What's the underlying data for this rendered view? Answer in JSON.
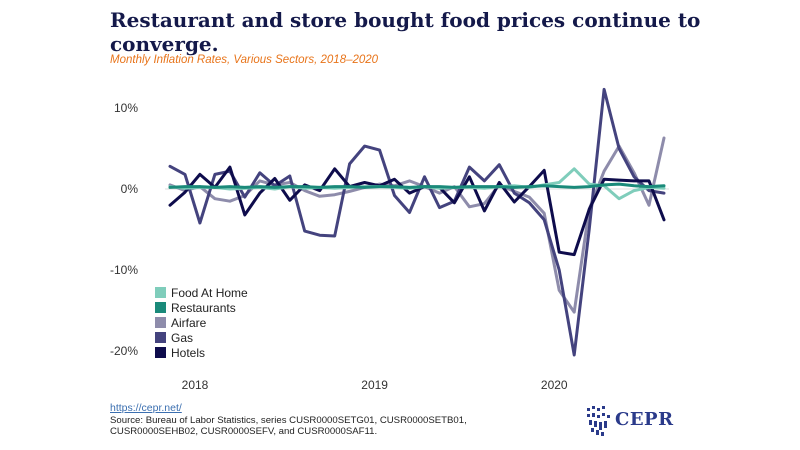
{
  "title": "Restaurant and store bought food prices continue to converge.",
  "subtitle": "Monthly Inflation Rates, Various Sectors, 2018–2020",
  "source_link": "https://cepr.net/",
  "source_text": "Source: Bureau of Labor Statistics, series CUSR0000SETG01, CUSR0000SETB01, CUSR0000SEHB02, CUSR0000SEFV, and CUSR0000SAF11.",
  "logo_text": "CEPR",
  "colors": {
    "Food At Home": "#7fcdbb",
    "Restaurants": "#1a8a7a",
    "Airfare": "#8e8cab",
    "Gas": "#44437e",
    "Hotels": "#0e0c4c"
  },
  "chart_data": {
    "type": "line",
    "title": "Restaurant and store bought food prices continue to converge.",
    "subtitle": "Monthly Inflation Rates, Various Sectors, 2018–2020",
    "xlabel": "",
    "ylabel": "",
    "x": [
      "2018-01",
      "2018-02",
      "2018-03",
      "2018-04",
      "2018-05",
      "2018-06",
      "2018-07",
      "2018-08",
      "2018-09",
      "2018-10",
      "2018-11",
      "2018-12",
      "2019-01",
      "2019-02",
      "2019-03",
      "2019-04",
      "2019-05",
      "2019-06",
      "2019-07",
      "2019-08",
      "2019-09",
      "2019-10",
      "2019-11",
      "2019-12",
      "2020-01",
      "2020-02",
      "2020-03",
      "2020-04",
      "2020-05",
      "2020-06",
      "2020-07",
      "2020-08",
      "2020-09",
      "2020-10"
    ],
    "x_ticks": [
      "2018",
      "2019",
      "2020"
    ],
    "y_ticks": [
      "10%",
      "0%",
      "-10%",
      "-20%"
    ],
    "ylim": [
      -22,
      13
    ],
    "grid": false,
    "legend_position": "bottom-left",
    "series": [
      {
        "name": "Airfare",
        "values": [
          0.5,
          -0.2,
          0.3,
          -1.2,
          -1.5,
          -0.8,
          1.0,
          0.5,
          0.8,
          -0.2,
          -0.9,
          -0.7,
          -0.3,
          0.2,
          0.6,
          0.4,
          1.0,
          0.3,
          -0.5,
          0.3,
          -2.2,
          -1.8,
          0.5,
          -0.3,
          -1.0,
          -3.0,
          -12.5,
          -15.2,
          -2.5,
          2.2,
          5.3,
          2.0,
          -2.0,
          6.3
        ]
      },
      {
        "name": "Gas",
        "values": [
          2.8,
          1.8,
          -4.2,
          1.8,
          2.2,
          -1.0,
          2.0,
          0.4,
          1.6,
          -5.2,
          -5.7,
          -5.8,
          3.1,
          5.3,
          4.8,
          -0.8,
          -2.9,
          1.5,
          -2.3,
          -1.5,
          2.7,
          1.0,
          3.0,
          -0.5,
          -1.7,
          -3.8,
          -10.0,
          -20.5,
          -5.0,
          12.3,
          5.0,
          1.5,
          -0.2,
          -0.5
        ]
      },
      {
        "name": "Hotels",
        "values": [
          -2.0,
          -0.4,
          1.8,
          0.2,
          2.7,
          -3.2,
          -0.5,
          1.3,
          -1.4,
          0.5,
          -0.2,
          2.5,
          0.3,
          0.8,
          0.4,
          1.2,
          -0.5,
          0.3,
          0.2,
          -1.7,
          1.5,
          -2.7,
          0.8,
          -1.6,
          0.3,
          2.3,
          -7.8,
          -8.1,
          -2.5,
          1.2,
          1.1,
          1.0,
          1.0,
          -3.8
        ]
      },
      {
        "name": "Food At Home",
        "values": [
          0.3,
          0.1,
          0.2,
          0.2,
          0.0,
          0.1,
          0.2,
          0.0,
          0.3,
          0.1,
          0.2,
          0.1,
          0.2,
          0.3,
          0.3,
          0.2,
          0.1,
          0.3,
          0.1,
          0.2,
          0.2,
          0.1,
          0.3,
          0.4,
          0.2,
          0.5,
          0.8,
          2.5,
          0.6,
          0.4,
          -1.2,
          -0.2,
          0.2,
          0.1
        ]
      },
      {
        "name": "Restaurants",
        "values": [
          0.2,
          0.3,
          0.3,
          0.2,
          0.3,
          0.2,
          0.3,
          0.2,
          0.3,
          0.3,
          0.2,
          0.3,
          0.3,
          0.2,
          0.3,
          0.3,
          0.2,
          0.3,
          0.3,
          0.2,
          0.3,
          0.3,
          0.3,
          0.2,
          0.3,
          0.4,
          0.3,
          0.2,
          0.3,
          0.5,
          0.6,
          0.4,
          0.3,
          0.4
        ]
      }
    ],
    "legend_order": [
      "Food At Home",
      "Restaurants",
      "Airfare",
      "Gas",
      "Hotels"
    ]
  }
}
